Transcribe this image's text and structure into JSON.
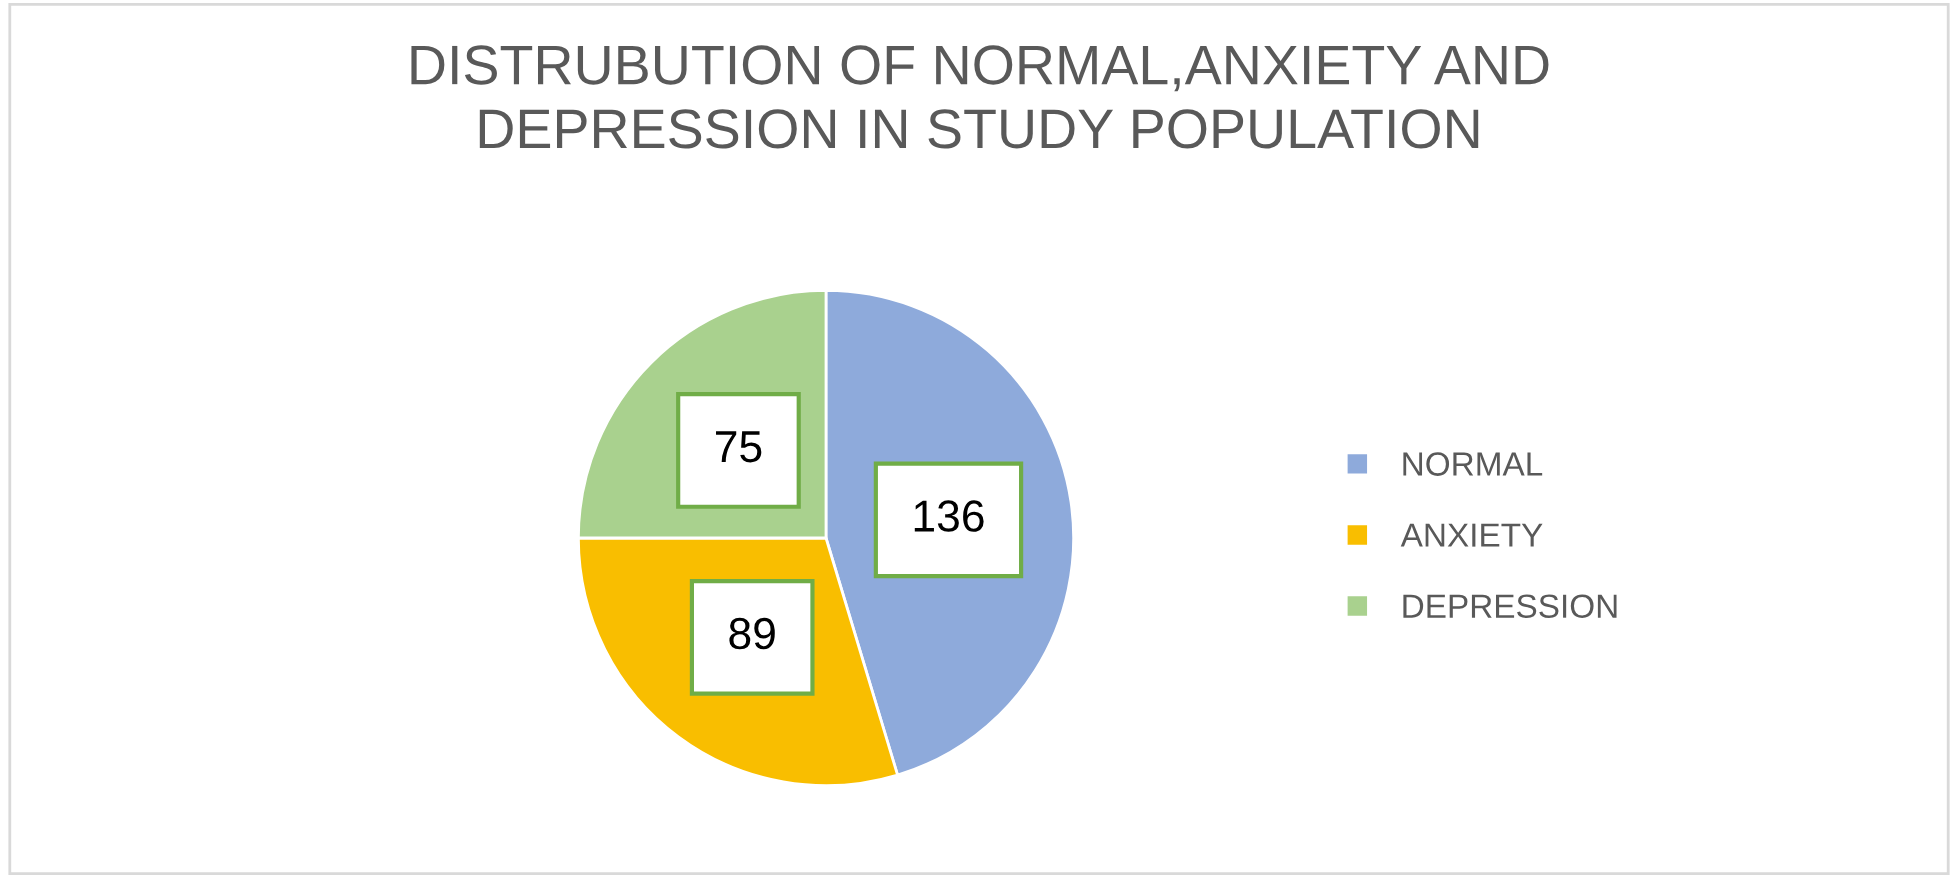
{
  "chart_data": {
    "type": "pie",
    "title": "DISTRUBUTION OF NORMAL,ANXIETY AND\nDEPRESSION IN STUDY POPULATION",
    "categories": [
      "NORMAL",
      "ANXIETY",
      "DEPRESSION"
    ],
    "values": [
      136,
      89,
      75
    ],
    "colors": [
      "#8eaadb",
      "#f9be00",
      "#a9d18e"
    ],
    "data_labels": true,
    "legend": "right"
  }
}
